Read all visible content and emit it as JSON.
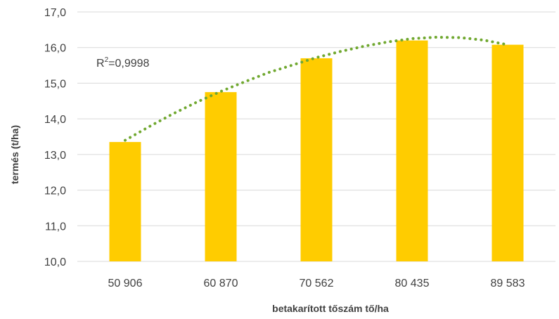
{
  "chart_data": {
    "type": "bar",
    "categories": [
      "50 906",
      "60 870",
      "70 562",
      "80 435",
      "89 583"
    ],
    "values": [
      13.35,
      14.75,
      15.7,
      16.2,
      16.08
    ],
    "yticks": [
      "10,0",
      "11,0",
      "12,0",
      "13,0",
      "14,0",
      "15,0",
      "16,0",
      "17,0"
    ],
    "ylim": [
      10,
      17
    ],
    "xlabel": "betakarított tőszám tő/ha",
    "ylabel": "termés (t/ha)",
    "trendline": {
      "type": "polynomial",
      "style": "dotted",
      "r2_prefix": "R",
      "r2_sup": "2",
      "r2_value": "=0,9998",
      "x": [
        0,
        0.25,
        0.5,
        0.75,
        1,
        1.25,
        1.5,
        1.75,
        2,
        2.25,
        2.5,
        2.75,
        3,
        3.25,
        3.5,
        3.75,
        4
      ],
      "y": [
        13.4,
        13.78,
        14.14,
        14.47,
        14.77,
        15.04,
        15.3,
        15.51,
        15.72,
        15.89,
        16.04,
        16.16,
        16.25,
        16.29,
        16.28,
        16.21,
        16.08
      ]
    },
    "bar_color": "#ffcc00",
    "trend_color": "#70a830",
    "grid": true,
    "legend": "none"
  }
}
